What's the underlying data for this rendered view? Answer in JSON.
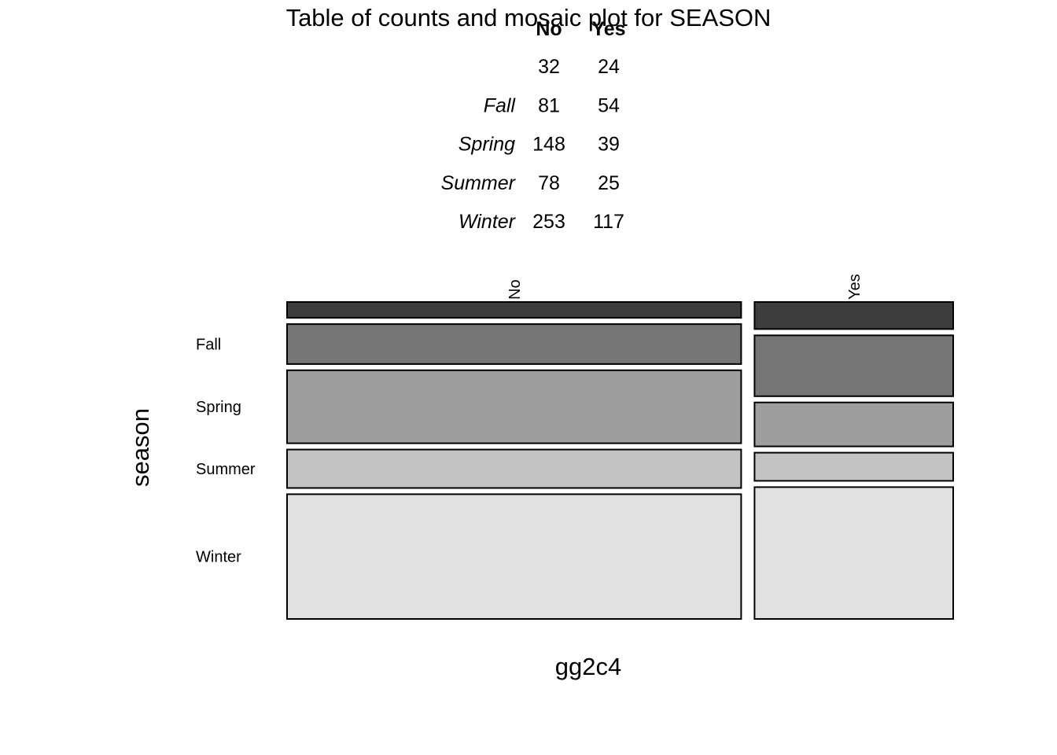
{
  "chart_data": {
    "type": "mosaic",
    "title": "Table of counts and mosaic plot for SEASON",
    "xlabel": "gg2c4",
    "ylabel": "season",
    "columns": [
      "No",
      "Yes"
    ],
    "rows": [
      "",
      "Fall",
      "Spring",
      "Summer",
      "Winter"
    ],
    "counts": [
      [
        32,
        24
      ],
      [
        81,
        54
      ],
      [
        148,
        39
      ],
      [
        78,
        25
      ],
      [
        253,
        117
      ]
    ],
    "fills": [
      "#3d3d3d",
      "#767676",
      "#9e9e9e",
      "#c2c2c2",
      "#e1e1e1"
    ]
  }
}
